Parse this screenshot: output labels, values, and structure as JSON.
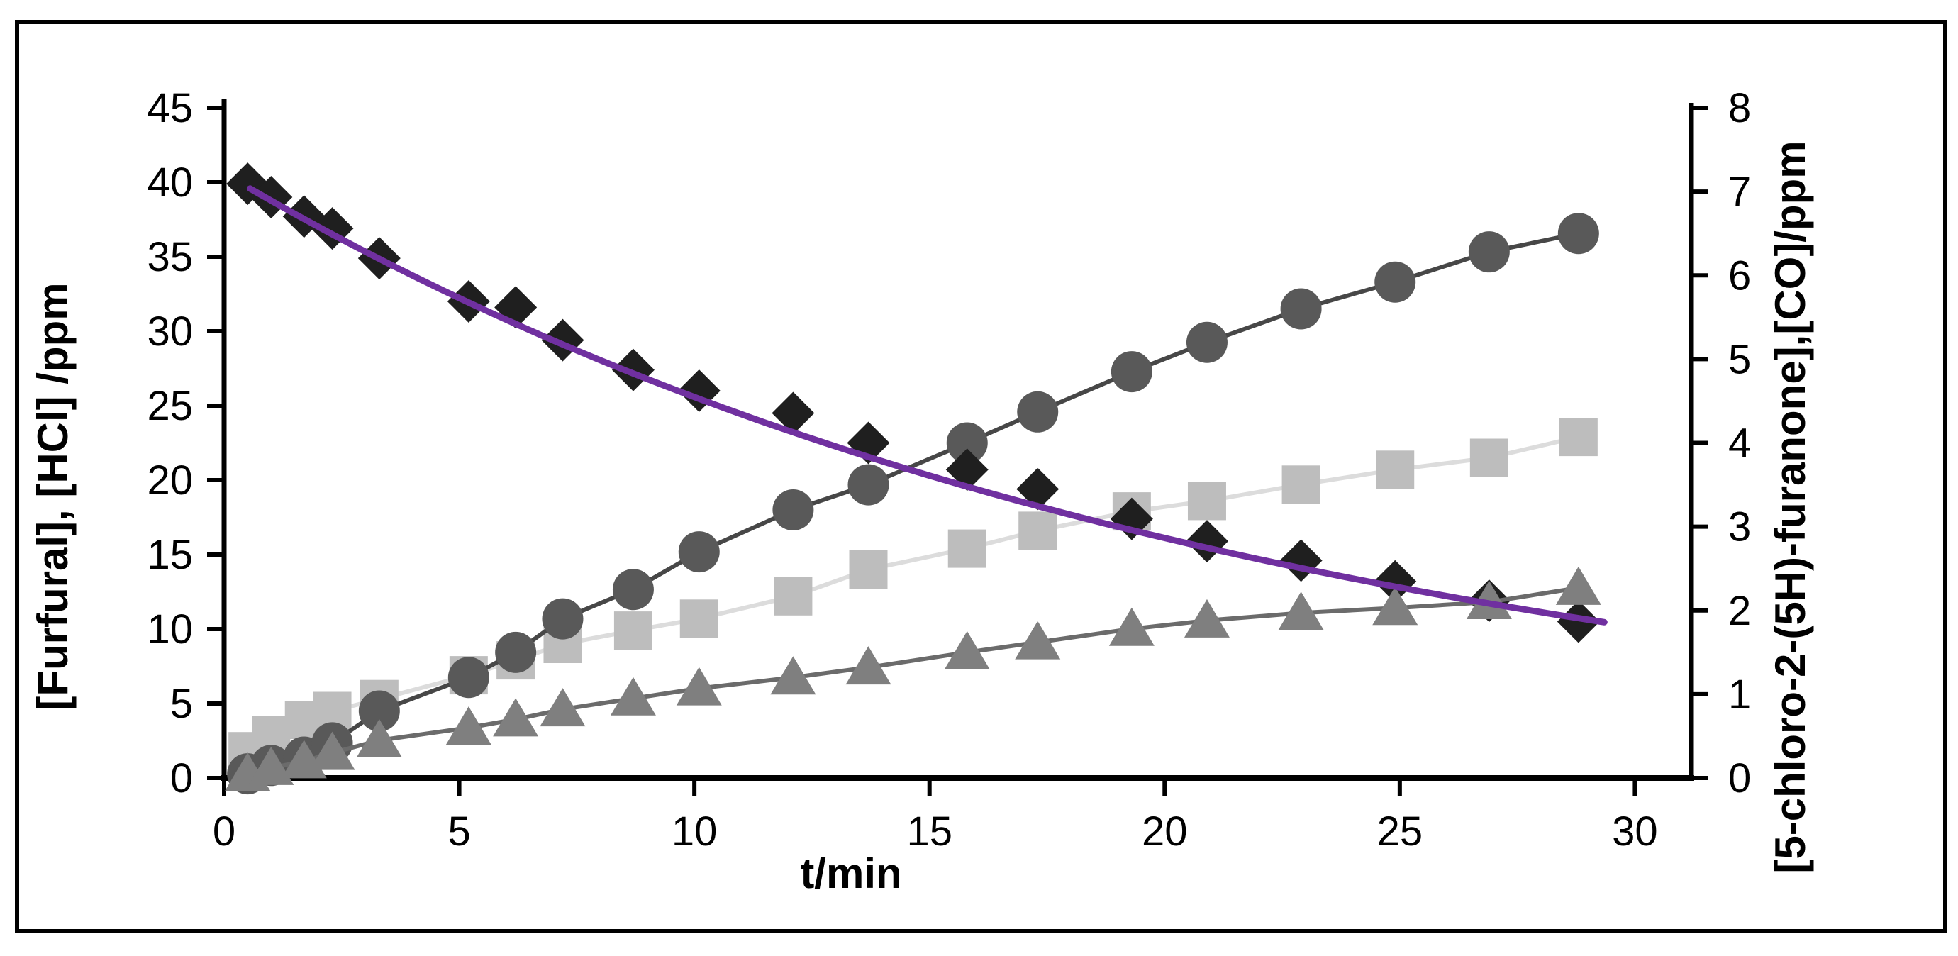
{
  "figure": {
    "background": "#ffffff",
    "border_color": "#000000",
    "border_width": 6
  },
  "chart_data": {
    "type": "scatter",
    "title": "",
    "xlabel": "t/min",
    "left_ylabel": "[Furfural], [HCl] /ppm",
    "right_ylabel": "[5-chloro-2-(5H)-furanone],[CO]/ppm",
    "x_axis": {
      "min": 0,
      "max": 31.2,
      "ticks": [
        0,
        5,
        10,
        15,
        20,
        25,
        30
      ]
    },
    "left_axis": {
      "min": 0,
      "max": 45,
      "ticks": [
        0,
        5,
        10,
        15,
        20,
        25,
        30,
        35,
        40,
        45
      ]
    },
    "right_axis": {
      "min": 0,
      "max": 8,
      "ticks": [
        0,
        1,
        2,
        3,
        4,
        5,
        6,
        7,
        8
      ]
    },
    "grid": false,
    "legend": "none",
    "x": [
      0.5,
      1.0,
      1.7,
      2.3,
      3.3,
      5.2,
      6.2,
      7.2,
      8.7,
      10.1,
      12.1,
      13.7,
      15.8,
      17.3,
      19.3,
      20.9,
      22.9,
      24.9,
      26.9,
      28.8
    ],
    "series": [
      {
        "name": "square",
        "axis": "left",
        "marker": "square",
        "marker_color": "#bdbdbd",
        "line_color": "#dcdcdc",
        "values": [
          1.8,
          2.9,
          3.9,
          4.5,
          5.3,
          6.9,
          7.9,
          9.0,
          9.9,
          10.7,
          12.2,
          14.0,
          15.4,
          16.6,
          17.9,
          18.6,
          19.7,
          20.7,
          21.5,
          22.9
        ]
      },
      {
        "name": "circle",
        "axis": "right",
        "marker": "circle",
        "marker_color": "#595959",
        "line_color": "#474747",
        "values": [
          0.05,
          0.15,
          0.25,
          0.42,
          0.8,
          1.2,
          1.5,
          1.9,
          2.25,
          2.7,
          3.2,
          3.5,
          4.0,
          4.37,
          4.85,
          5.2,
          5.6,
          5.92,
          6.28,
          6.5
        ]
      },
      {
        "name": "diamond",
        "axis": "left",
        "marker": "diamond",
        "marker_color": "#1f1f1f",
        "line_color": null,
        "values": [
          39.9,
          39.0,
          37.7,
          36.9,
          34.9,
          32.0,
          31.6,
          29.4,
          27.4,
          26.0,
          24.5,
          22.5,
          20.7,
          19.4,
          17.4,
          15.9,
          14.6,
          13.2,
          11.9,
          10.5
        ]
      },
      {
        "name": "triangle",
        "axis": "right",
        "marker": "triangle",
        "marker_color": "#7f7f7f",
        "line_color": "#6b6b6b",
        "values": [
          0.05,
          0.12,
          0.2,
          0.3,
          0.45,
          0.6,
          0.7,
          0.82,
          0.95,
          1.07,
          1.2,
          1.32,
          1.5,
          1.62,
          1.78,
          1.88,
          1.97,
          2.03,
          2.1,
          2.27
        ]
      }
    ],
    "trendline": {
      "series": "diamond",
      "type": "exponential",
      "a": 40.6,
      "k": 0.0462,
      "t_start": 0.55,
      "t_end": 29.4,
      "color": "#7030a0"
    }
  }
}
